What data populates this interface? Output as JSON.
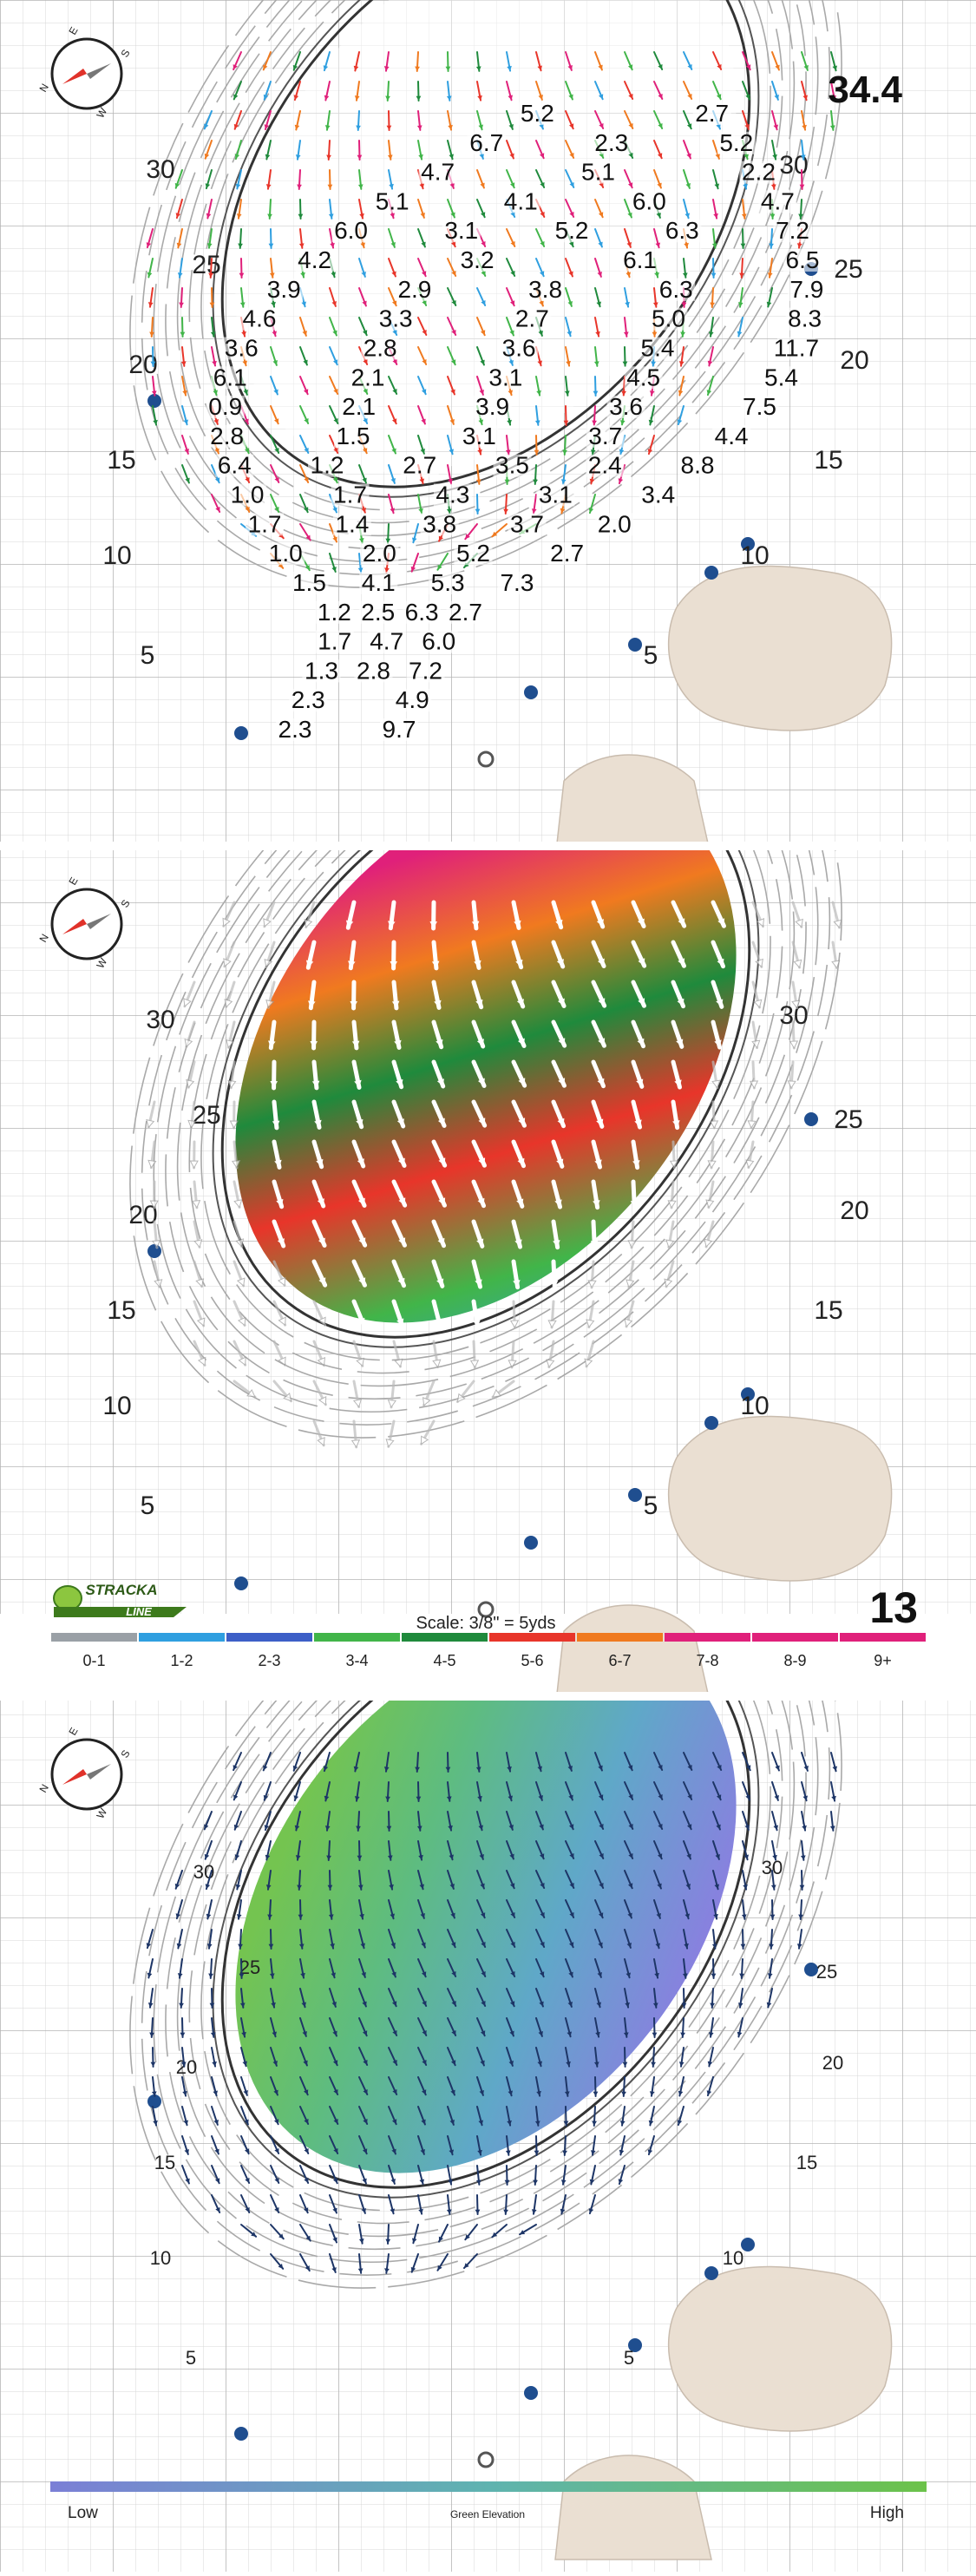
{
  "panel1": {
    "green_length": "34.4",
    "yardage_left": [
      "30",
      "25",
      "20",
      "15",
      "10",
      "5"
    ],
    "yardage_right": [
      "30",
      "25",
      "20",
      "15",
      "10",
      "5"
    ],
    "slope_values": [
      [
        "5.2",
        "2.7"
      ],
      [
        "6.7",
        "2.3",
        "5.2"
      ],
      [
        "4.7",
        "5.1",
        "2.2"
      ],
      [
        "5.1",
        "4.1",
        "6.0",
        "4.7"
      ],
      [
        "6.0",
        "3.1",
        "5.2",
        "6.3",
        "7.2"
      ],
      [
        "4.2",
        "3.2",
        "6.1",
        "6.5"
      ],
      [
        "3.9",
        "2.9",
        "3.8",
        "6.3",
        "7.9"
      ],
      [
        "4.6",
        "3.3",
        "2.7",
        "5.0",
        "8.3"
      ],
      [
        "3.6",
        "2.8",
        "3.6",
        "5.4",
        "11.7"
      ],
      [
        "6.1",
        "2.1",
        "3.1",
        "4.5",
        "5.4"
      ],
      [
        "0.9",
        "2.1",
        "3.9",
        "3.6",
        "7.5"
      ],
      [
        "2.8",
        "1.5",
        "3.1",
        "3.7",
        "4.4"
      ],
      [
        "6.4",
        "1.2",
        "2.7",
        "3.5",
        "2.4",
        "8.8"
      ],
      [
        "1.0",
        "1.7",
        "4.3",
        "3.1",
        "3.4"
      ],
      [
        "1.7",
        "1.4",
        "3.8",
        "3.7",
        "2.0"
      ],
      [
        "1.0",
        "2.0",
        "5.2",
        "2.7"
      ],
      [
        "1.5",
        "4.1",
        "5.3",
        "7.3"
      ],
      [
        "1.2",
        "2.5",
        "6.3",
        "2.7"
      ],
      [
        "1.7",
        "4.7",
        "6.0"
      ],
      [
        "1.3",
        "2.8",
        "7.2"
      ],
      [
        "2.3",
        "4.9"
      ],
      [
        "2.3",
        "9.7"
      ]
    ]
  },
  "panel2": {
    "hole_number": "13",
    "scale_text": "Scale: 3/8\" = 5yds",
    "logo_text": "STRACKA LINE",
    "yardage_left": [
      "30",
      "25",
      "20",
      "15",
      "10",
      "5"
    ],
    "yardage_right": [
      "30",
      "25",
      "20",
      "15",
      "10",
      "5"
    ],
    "legend_labels": [
      "0-1",
      "1-2",
      "2-3",
      "3-4",
      "4-5",
      "5-6",
      "6-7",
      "7-8",
      "8-9",
      "9+"
    ],
    "legend_colors": [
      "#9aa0a6",
      "#2f9fe0",
      "#3d5fc7",
      "#41b549",
      "#1f8a3c",
      "#e8352a",
      "#f07a1f",
      "#e0207a",
      "#e0207a",
      "#e0207a"
    ]
  },
  "panel3": {
    "yardage_left": [
      "30",
      "25",
      "20",
      "15",
      "10",
      "5"
    ],
    "yardage_right": [
      "30",
      "25",
      "20",
      "15",
      "10",
      "5"
    ],
    "elevation_low": "Low",
    "elevation_title": "Green Elevation",
    "elevation_high": "High",
    "gradient_low_color": "#7b7fd6",
    "gradient_high_color": "#6cc24a"
  },
  "colors": {
    "sand": "#eadfd2",
    "grid_major": "#b8b8b8",
    "grid_minor": "#dddddd",
    "contour": "#9a9a9a",
    "arrow_dark": "#1d3566",
    "compass_red": "#e0322a"
  }
}
